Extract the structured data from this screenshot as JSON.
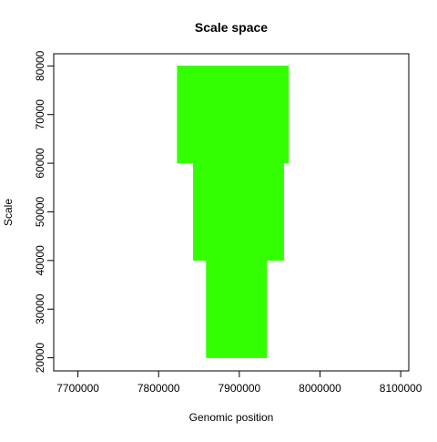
{
  "chart_data": {
    "type": "bar",
    "title": "Scale space",
    "xlabel": "Genomic position",
    "ylabel": "Scale",
    "xlim": [
      7670000,
      8110000
    ],
    "ylim": [
      17300,
      82500
    ],
    "x_ticks": [
      7700000,
      7800000,
      7900000,
      8000000,
      8100000
    ],
    "x_tick_labels": [
      "7700000",
      "7800000",
      "7900000",
      "8000000",
      "8100000"
    ],
    "y_ticks": [
      20000,
      30000,
      40000,
      50000,
      60000,
      70000,
      80000
    ],
    "y_tick_labels": [
      "20000",
      "30000",
      "40000",
      "50000",
      "60000",
      "70000",
      "80000"
    ],
    "segments": [
      {
        "scale_from": 20000,
        "scale_to": 40000,
        "x_start": 7859000,
        "x_end": 7934000
      },
      {
        "scale_from": 40000,
        "scale_to": 60000,
        "x_start": 7843000,
        "x_end": 7955000
      },
      {
        "scale_from": 60000,
        "scale_to": 80000,
        "x_start": 7823000,
        "x_end": 7961000
      }
    ],
    "fill_color": "#33ff00",
    "grid": false,
    "legend": false
  }
}
